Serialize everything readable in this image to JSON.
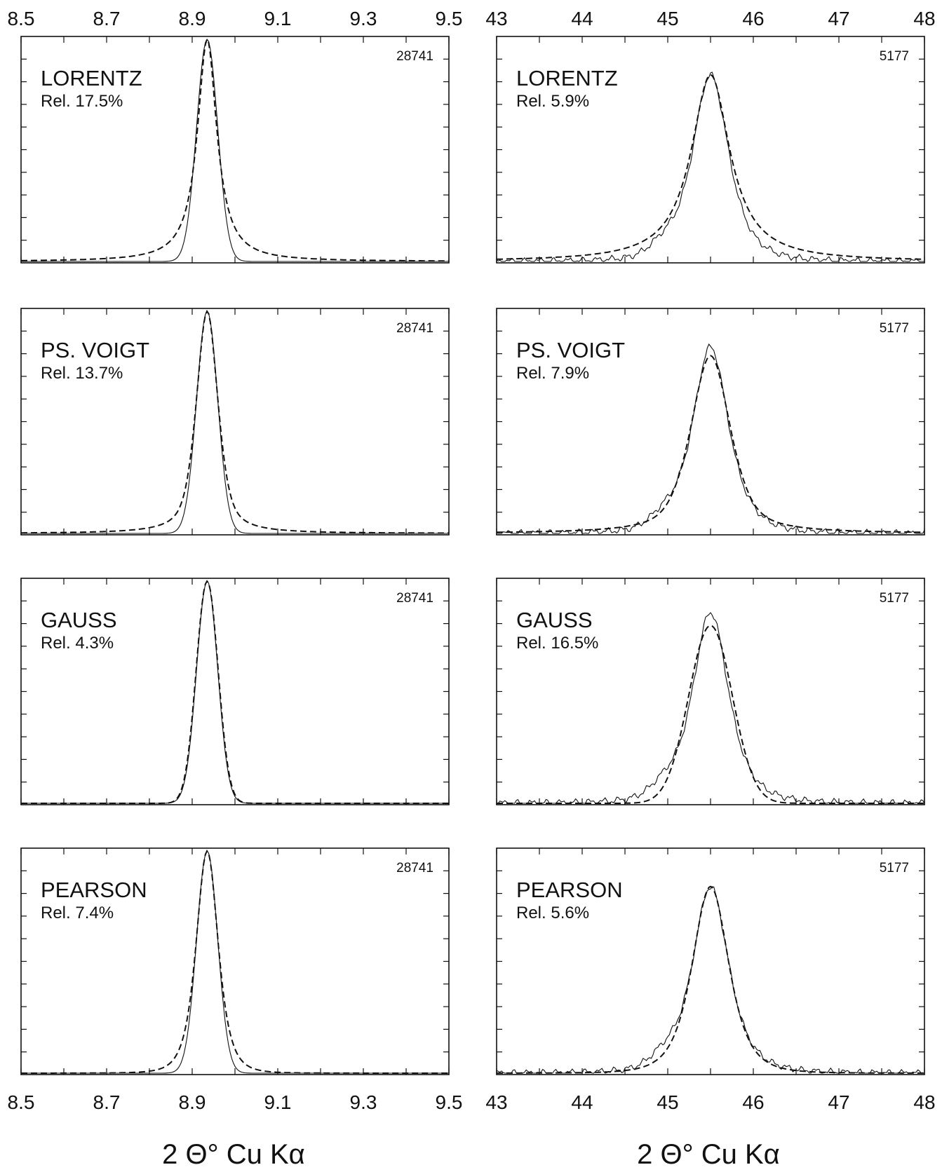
{
  "chart_data": {
    "type": "line",
    "panels_grid": "4 rows x 2 columns",
    "xlabel": "2 Θ° Cu Kα",
    "columns": [
      {
        "xlim": [
          8.5,
          9.5
        ],
        "ticks": [
          8.5,
          8.7,
          8.9,
          9.1,
          9.3,
          9.5
        ],
        "tick_labels": [
          "8.5",
          "8.7",
          "8.9",
          "9.1",
          "9.3",
          "9.5"
        ],
        "peak_center": 8.935,
        "peak_count": "28741",
        "panels": [
          {
            "function": "LORENTZ",
            "rel_label": "Rel.",
            "rel_value": "17.5%",
            "fit_shape": "lorentz",
            "fwhm": 0.055
          },
          {
            "function": "PS. VOIGT",
            "rel_label": "Rel.",
            "rel_value": "13.7%",
            "fit_shape": "voigt",
            "fwhm": 0.06
          },
          {
            "function": "GAUSS",
            "rel_label": "Rel.",
            "rel_value": "4.3%",
            "fit_shape": "gauss",
            "fwhm": 0.06
          },
          {
            "function": "PEARSON",
            "rel_label": "Rel.",
            "rel_value": "7.4%",
            "fit_shape": "pearson",
            "fwhm": 0.06
          }
        ]
      },
      {
        "xlim": [
          43,
          48
        ],
        "ticks": [
          43,
          44,
          45,
          46,
          47,
          48
        ],
        "tick_labels": [
          "43",
          "44",
          "45",
          "46",
          "47",
          "48"
        ],
        "peak_center": 45.5,
        "peak_count": "5177",
        "panels": [
          {
            "function": "LORENTZ",
            "rel_label": "Rel.",
            "rel_value": "5.9%",
            "fit_shape": "lorentz",
            "fwhm": 0.55
          },
          {
            "function": "PS. VOIGT",
            "rel_label": "Rel.",
            "rel_value": "7.9%",
            "fit_shape": "voigt",
            "fwhm": 0.55
          },
          {
            "function": "GAUSS",
            "rel_label": "Rel.",
            "rel_value": "16.5%",
            "fit_shape": "gauss",
            "fwhm": 0.6
          },
          {
            "function": "PEARSON",
            "rel_label": "Rel.",
            "rel_value": "5.6%",
            "fit_shape": "pearson",
            "fwhm": 0.5
          }
        ]
      }
    ]
  }
}
